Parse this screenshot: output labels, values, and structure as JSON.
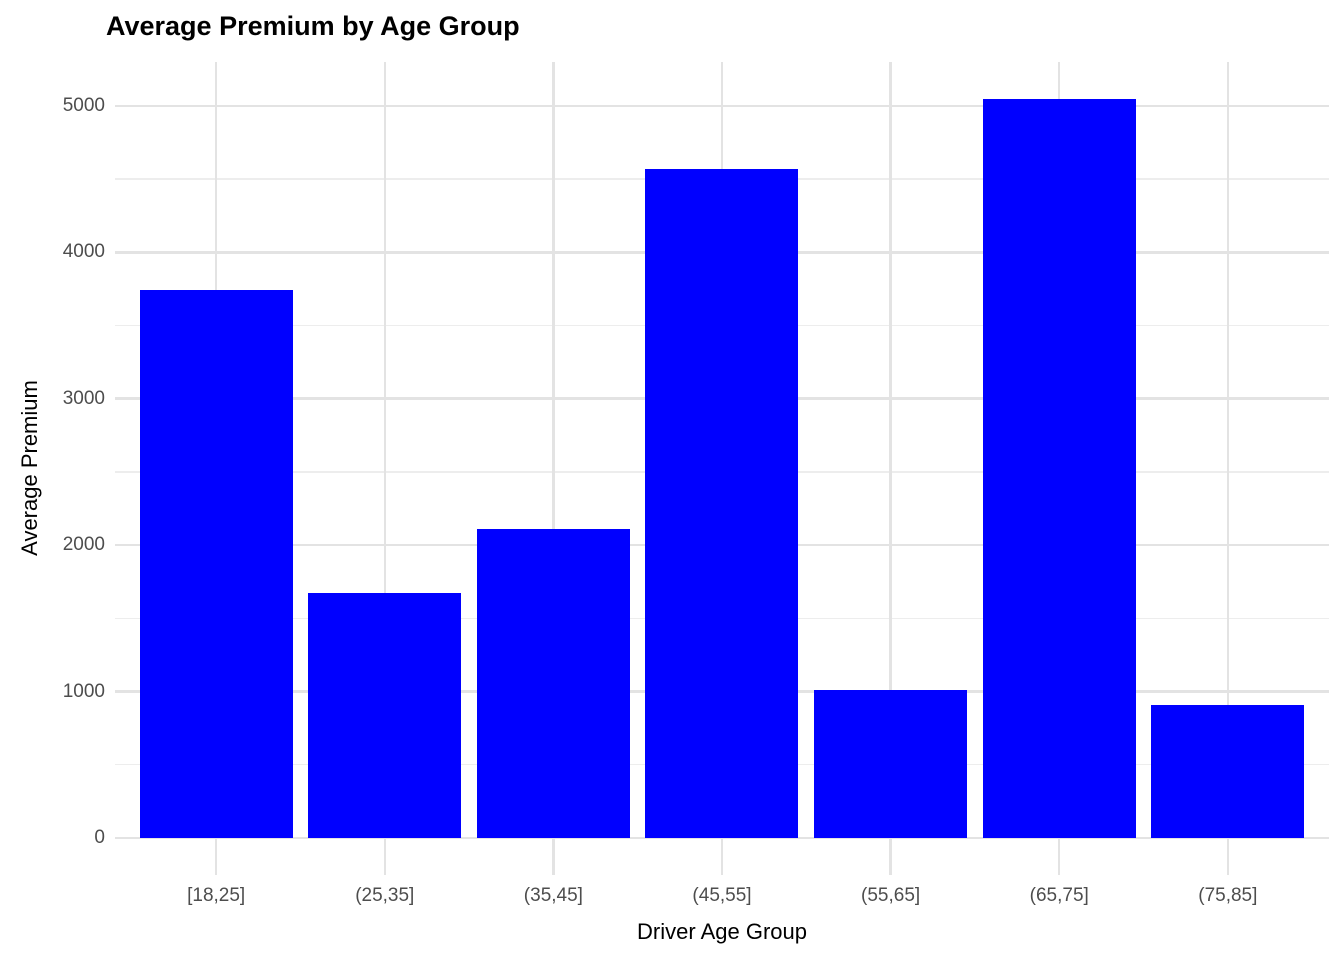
{
  "chart_title": "Average Premium by Age Group",
  "chart_data": {
    "type": "bar",
    "title": "Average Premium by Age Group",
    "xlabel": "Driver Age Group",
    "ylabel": "Average Premium",
    "categories": [
      "[18,25]",
      "(25,35]",
      "(35,45]",
      "(45,55]",
      "(55,65]",
      "(65,75]",
      "(75,85]"
    ],
    "values": [
      3745,
      1670,
      2110,
      4570,
      1010,
      5050,
      910
    ],
    "y_major_ticks": [
      0,
      1000,
      2000,
      3000,
      4000,
      5000
    ],
    "y_minor_ticks": [
      500,
      1500,
      2500,
      3500,
      4500
    ],
    "ylim": [
      -253,
      5300
    ],
    "grid": true,
    "legend_position": "none",
    "colors": {
      "bar": "#0000ff",
      "grid_major": "#e3e3e3",
      "grid_minor": "#ededed",
      "tick_label": "#4d4d4d",
      "axis_title": "#000000",
      "title": "#000000",
      "background": "#ffffff"
    }
  }
}
